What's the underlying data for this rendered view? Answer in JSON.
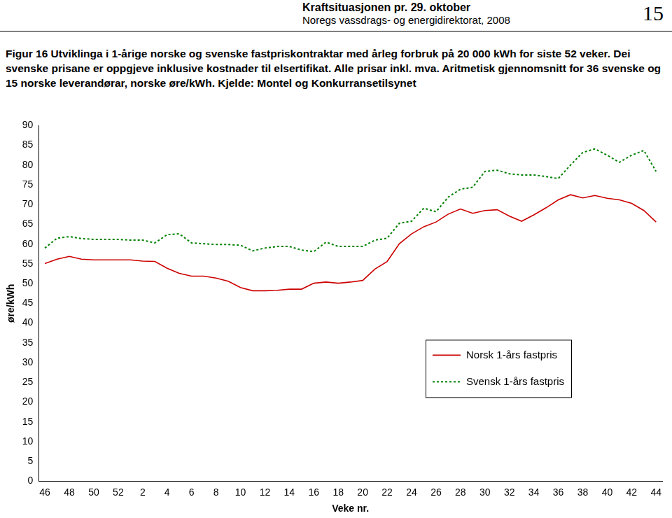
{
  "page": {
    "header_title": "Kraftsituasjonen pr. 29. oktober",
    "header_subtitle": "Noregs vassdrags- og energidirektorat, 2008",
    "page_number": 15
  },
  "chart_data": {
    "type": "line",
    "title": "Figur 16 Utviklinga i 1-årige norske og svenske fastpriskontraktar med årleg forbruk på 20 000 kWh for siste 52 veker. Dei svenske prisane er oppgjeve inklusive kostnader til elsertifikat. Alle prisar inkl. mva. Aritmetisk gjennomsnitt for 36 svenske og 15 norske leverandørar, norske øre/kWh. Kjelde: Montel og Konkurransetilsynet",
    "x_label": "Veke nr.",
    "y_label": "øre/kWh",
    "categories": [
      "46",
      null,
      "48",
      null,
      "50",
      null,
      "52",
      null,
      "2",
      null,
      "4",
      null,
      "6",
      null,
      "8",
      null,
      "10",
      null,
      "12",
      null,
      "14",
      null,
      "16",
      null,
      "18",
      null,
      "20",
      null,
      "22",
      null,
      "24",
      null,
      "26",
      null,
      "28",
      null,
      "30",
      null,
      "32",
      null,
      "34",
      null,
      "36",
      null,
      "38",
      null,
      "40",
      null,
      "42",
      null,
      "44"
    ],
    "series": [
      {
        "name": "Norsk 1-års fastpris",
        "color": "#cc0000",
        "line_style": "solid",
        "marker": "none",
        "values": [
          55.1,
          56.2,
          56.9,
          56.2,
          56.0,
          56.0,
          56.0,
          56.0,
          55.7,
          55.6,
          53.9,
          52.6,
          51.9,
          51.9,
          51.4,
          50.6,
          49.0,
          48.2,
          48.2,
          48.3,
          48.6,
          48.6,
          50.1,
          50.4,
          50.1,
          50.4,
          50.8,
          53.7,
          55.6,
          60.1,
          62.6,
          64.4,
          65.6,
          67.6,
          68.9,
          67.8,
          68.5,
          68.7,
          67.1,
          65.8,
          67.4,
          69.2,
          71.2,
          72.5,
          71.7,
          72.3,
          71.6,
          71.2,
          70.3,
          68.5,
          65.6
        ]
      },
      {
        "name": "Svensk 1-års fastpris",
        "color": "#008000",
        "line_style": "dotted",
        "marker": "none",
        "values": [
          59.0,
          61.5,
          61.9,
          61.4,
          61.2,
          61.2,
          61.2,
          61.0,
          61.0,
          60.3,
          62.4,
          62.6,
          60.3,
          60.1,
          59.9,
          59.9,
          59.7,
          58.3,
          59.0,
          59.4,
          59.4,
          58.5,
          58.1,
          60.5,
          59.4,
          59.4,
          59.4,
          61.0,
          61.5,
          65.3,
          65.8,
          69.1,
          68.2,
          71.9,
          73.9,
          74.4,
          78.4,
          78.7,
          77.8,
          77.5,
          77.5,
          77.1,
          76.6,
          80.0,
          83.2,
          84.1,
          82.5,
          80.7,
          82.5,
          83.7,
          78.4
        ]
      }
    ],
    "ylim": [
      0,
      90
    ],
    "yticks": [
      0,
      5,
      10,
      15,
      20,
      25,
      30,
      35,
      40,
      45,
      50,
      55,
      60,
      65,
      70,
      75,
      80,
      85,
      90
    ],
    "grid": false,
    "legend": "lower right"
  }
}
